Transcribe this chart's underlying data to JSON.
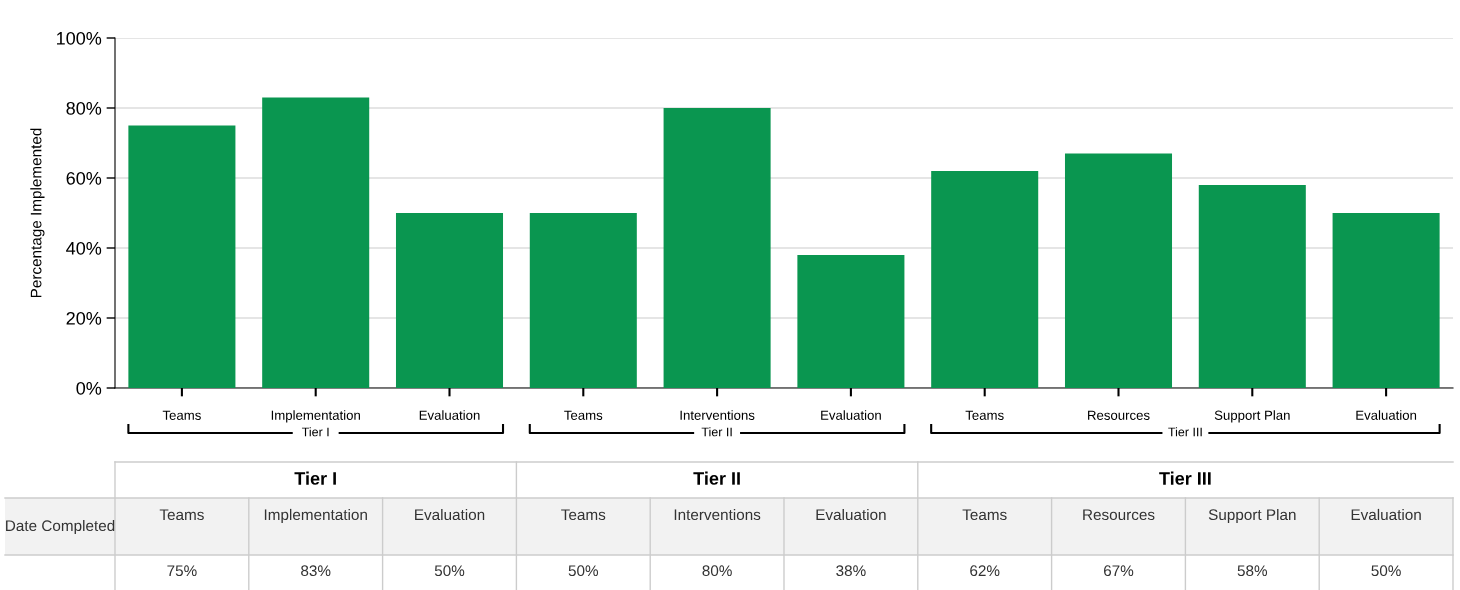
{
  "chart_data": {
    "type": "bar",
    "ylabel": "Percentage Implemented",
    "categories": [
      "Teams",
      "Implementation",
      "Evaluation",
      "Teams",
      "Interventions",
      "Evaluation",
      "Teams",
      "Resources",
      "Support Plan",
      "Evaluation"
    ],
    "values": [
      75,
      83,
      50,
      50,
      80,
      38,
      62,
      67,
      58,
      50
    ],
    "value_labels": [
      "75%",
      "83%",
      "50%",
      "50%",
      "80%",
      "38%",
      "62%",
      "67%",
      "58%",
      "50%"
    ],
    "color": "#0a9650",
    "ylim": [
      0,
      100
    ],
    "yticks": [
      {
        "value": 0,
        "label": "0%"
      },
      {
        "value": 20,
        "label": "20%"
      },
      {
        "value": 40,
        "label": "40%"
      },
      {
        "value": 60,
        "label": "60%"
      },
      {
        "value": 80,
        "label": "80%"
      },
      {
        "value": 100,
        "label": "100%"
      }
    ],
    "grid": "y",
    "annotations": [
      "Tier I",
      "Tier II",
      "Tier III",
      "Date Completed"
    ]
  }
}
